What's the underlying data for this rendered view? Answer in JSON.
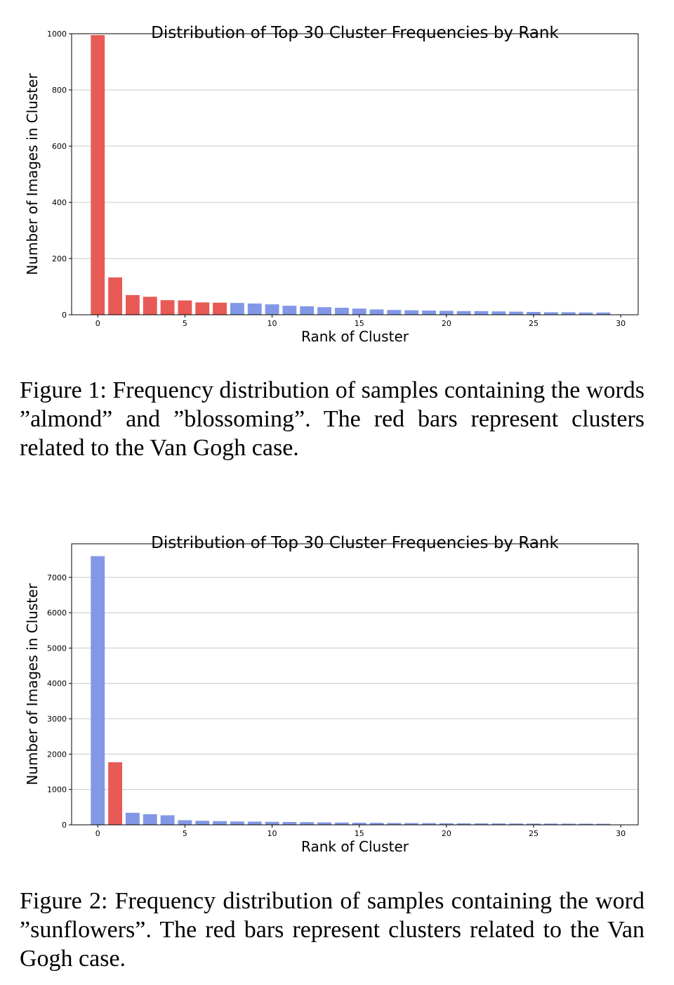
{
  "colors": {
    "highlight": "#e85a56",
    "normal": "#8297e5",
    "grid": "#c8c8c8",
    "axis": "#000000"
  },
  "chart_data": [
    {
      "type": "bar",
      "title": "Distribution of Top 30 Cluster Frequencies by Rank",
      "xlabel": "Rank of Cluster",
      "ylabel": "Number of Images in Cluster",
      "xlim": [
        -1.5,
        31
      ],
      "ylim": [
        0,
        1000
      ],
      "xticks": [
        0,
        5,
        10,
        15,
        20,
        25,
        30
      ],
      "yticks": [
        0,
        200,
        400,
        600,
        800,
        1000
      ],
      "grid": "y",
      "x": [
        0,
        1,
        2,
        3,
        4,
        5,
        6,
        7,
        8,
        9,
        10,
        11,
        12,
        13,
        14,
        15,
        16,
        17,
        18,
        19,
        20,
        21,
        22,
        23,
        24,
        25,
        26,
        27,
        28,
        29
      ],
      "values": [
        995,
        133,
        70,
        64,
        52,
        51,
        44,
        43,
        42,
        40,
        37,
        32,
        30,
        27,
        25,
        22,
        19,
        17,
        16,
        15,
        14,
        13,
        13,
        12,
        11,
        10,
        9,
        9,
        8,
        8
      ],
      "highlighted": [
        0,
        1,
        2,
        3,
        4,
        5,
        6,
        7
      ]
    },
    {
      "type": "bar",
      "title": "Distribution of Top 30 Cluster Frequencies by Rank",
      "xlabel": "Rank of Cluster",
      "ylabel": "Number of Images in Cluster",
      "xlim": [
        -1.5,
        31
      ],
      "ylim": [
        0,
        7950
      ],
      "xticks": [
        0,
        5,
        10,
        15,
        20,
        25,
        30
      ],
      "yticks": [
        0,
        1000,
        2000,
        3000,
        4000,
        5000,
        6000,
        7000
      ],
      "grid": "y",
      "x": [
        0,
        1,
        2,
        3,
        4,
        5,
        6,
        7,
        8,
        9,
        10,
        11,
        12,
        13,
        14,
        15,
        16,
        17,
        18,
        19,
        20,
        21,
        22,
        23,
        24,
        25,
        26,
        27,
        28,
        29
      ],
      "values": [
        7600,
        1770,
        340,
        300,
        270,
        130,
        115,
        105,
        95,
        90,
        85,
        80,
        75,
        70,
        65,
        60,
        56,
        52,
        50,
        48,
        45,
        43,
        41,
        39,
        37,
        35,
        34,
        33,
        32,
        30
      ],
      "highlighted": [
        1
      ]
    }
  ],
  "captions": [
    "Figure 1: Frequency distribution of samples containing the words ”almond” and ”blossoming”. The red bars represent clusters related to the Van Gogh case.",
    "Figure 2: Frequency distribution of samples containing the word ”sunflowers”. The red bars represent clusters related to the Van Gogh case."
  ]
}
